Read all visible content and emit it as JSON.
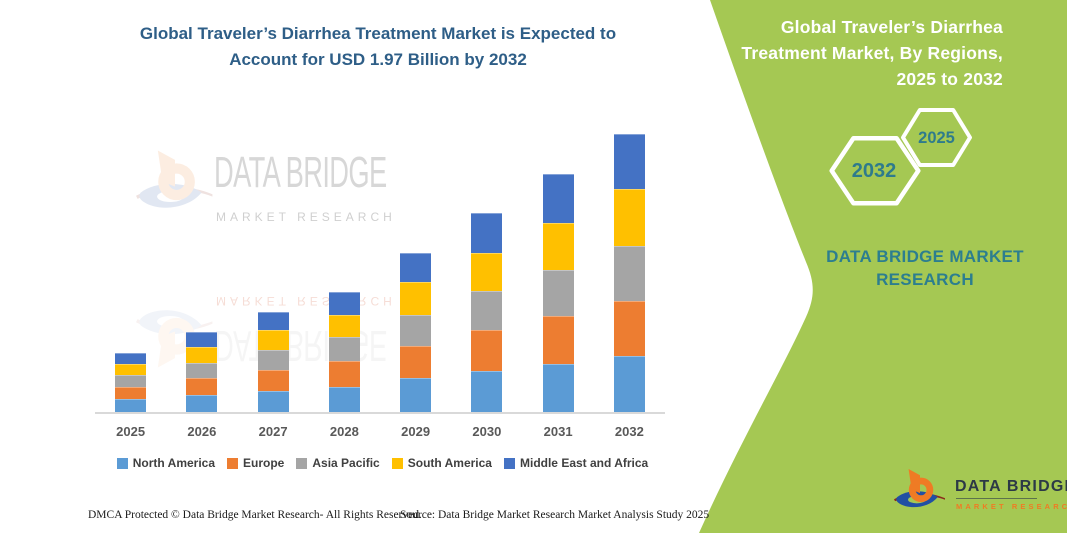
{
  "header": {
    "title_lines": [
      "Global Traveler’s Diarrhea Treatment Market is Expected to",
      "Account for USD 1.97 Billion by 2032"
    ]
  },
  "chart_data": {
    "type": "bar",
    "stacked": true,
    "title": "Global Traveler’s Diarrhea Treatment Market is Expected to Account for USD 1.97 Billion by 2032",
    "unit": "USD billion",
    "categories": [
      "2025",
      "2026",
      "2027",
      "2028",
      "2029",
      "2030",
      "2031",
      "2032"
    ],
    "series": [
      {
        "name": "North America",
        "color": "#5b9bd5",
        "values": [
          0.09,
          0.12,
          0.15,
          0.18,
          0.24,
          0.29,
          0.34,
          0.4
        ]
      },
      {
        "name": "Europe",
        "color": "#ed7d31",
        "values": [
          0.09,
          0.12,
          0.15,
          0.18,
          0.23,
          0.29,
          0.34,
          0.39
        ]
      },
      {
        "name": "Asia Pacific",
        "color": "#a5a5a5",
        "values": [
          0.08,
          0.11,
          0.14,
          0.17,
          0.22,
          0.28,
          0.33,
          0.39
        ]
      },
      {
        "name": "South America",
        "color": "#ffc000",
        "values": [
          0.08,
          0.11,
          0.14,
          0.16,
          0.23,
          0.27,
          0.33,
          0.4
        ]
      },
      {
        "name": "Middle East and Africa",
        "color": "#4472c4",
        "values": [
          0.08,
          0.11,
          0.13,
          0.16,
          0.21,
          0.28,
          0.35,
          0.39
        ]
      }
    ],
    "totals": [
      0.42,
      0.57,
      0.71,
      0.85,
      1.13,
      1.41,
      1.69,
      1.97
    ],
    "ylim": [
      0,
      2.0
    ],
    "grid": false,
    "y_axis_visible": false,
    "legend_position": "bottom"
  },
  "watermark": {
    "line1": "DATA BRIDGE",
    "line2": "MARKET RESEARCH"
  },
  "panel": {
    "bg_color": "#a5c853",
    "title_lines": [
      "Global Traveler’s Diarrhea",
      "Treatment Market, By Regions,",
      "2025 to 2032"
    ],
    "hexagons": [
      {
        "label": "2032"
      },
      {
        "label": "2025"
      }
    ],
    "brand_text": "DATA BRIDGE MARKET RESEARCH"
  },
  "footer_logo": {
    "name": "DATA BRIDGE",
    "sub": "MARKET RESEARCH"
  },
  "footer": {
    "dmca": "DMCA Protected © Data Bridge Market Research-  All Rights Reserved.",
    "source": "Source: Data Bridge Market Research  Market Analysis Study 2025"
  },
  "colors": {
    "panel_green": "#a5c853",
    "title_blue": "#2e5e87",
    "teal_text": "#2c7e8f",
    "hexagon_text": "#2e7b8c",
    "logo_orange": "#ef7b24",
    "logo_blue": "#2150a3",
    "logo_maroon": "#8b2b1b",
    "axis_text": "#595959",
    "axis_line": "#d9d9d9"
  }
}
